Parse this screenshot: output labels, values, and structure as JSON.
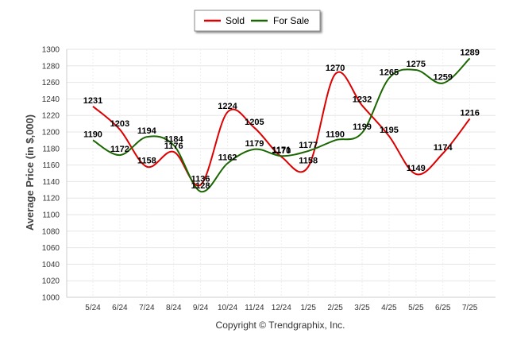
{
  "chart_data": {
    "type": "line",
    "categories": [
      "5/24",
      "6/24",
      "7/24",
      "8/24",
      "9/24",
      "10/24",
      "11/24",
      "12/24",
      "1/25",
      "2/25",
      "3/25",
      "4/25",
      "5/25",
      "6/25",
      "7/25"
    ],
    "series": [
      {
        "name": "Sold",
        "color": "#dd0000",
        "values": [
          1231,
          1203,
          1158,
          1176,
          1136,
          1224,
          1205,
          1170,
          1158,
          1270,
          1232,
          1195,
          1149,
          1174,
          1216
        ]
      },
      {
        "name": "For Sale",
        "color": "#1a6600",
        "values": [
          1190,
          1172,
          1194,
          1184,
          1128,
          1162,
          1179,
          1171,
          1177,
          1190,
          1199,
          1265,
          1275,
          1259,
          1289
        ]
      }
    ],
    "ylabel": "Average Price (in $,000)",
    "xlabel": "",
    "ylim": [
      1000,
      1300
    ],
    "yticks": [
      1000,
      1020,
      1040,
      1060,
      1080,
      1100,
      1120,
      1140,
      1160,
      1180,
      1200,
      1220,
      1240,
      1260,
      1280,
      1300
    ],
    "grid": true,
    "legend": "top-center",
    "credit": "Copyright © Trendgraphix, Inc."
  }
}
